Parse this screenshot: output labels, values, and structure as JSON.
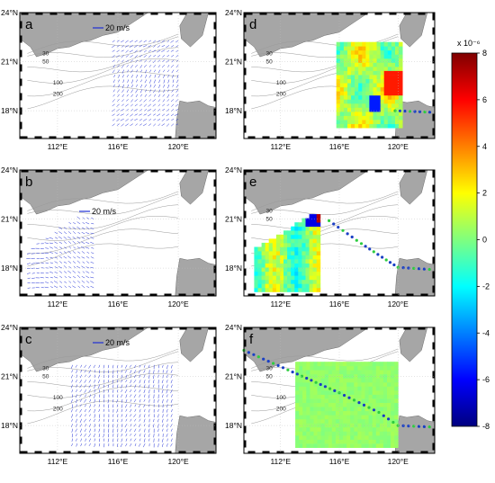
{
  "panels": [
    {
      "id": "a",
      "letter": "a",
      "ref_label": "20 m/s",
      "contours": [
        "30",
        "50",
        "100",
        "200"
      ],
      "field": "vectors",
      "region": "east",
      "track": "none"
    },
    {
      "id": "b",
      "letter": "b",
      "ref_label": "20 m/s",
      "contours": [],
      "field": "vectors",
      "region": "west",
      "track": "none"
    },
    {
      "id": "c",
      "letter": "c",
      "ref_label": "20 m/s",
      "contours": [
        "30",
        "50",
        "100",
        "200"
      ],
      "field": "vectors",
      "region": "full",
      "track": "none"
    },
    {
      "id": "d",
      "letter": "d",
      "ref_label": "",
      "contours": [
        "30",
        "50",
        "100",
        "200"
      ],
      "field": "color",
      "region": "east",
      "track": "short"
    },
    {
      "id": "e",
      "letter": "e",
      "ref_label": "",
      "contours": [
        "30",
        "50",
        "100",
        "200"
      ],
      "field": "color",
      "region": "west",
      "track": "medium"
    },
    {
      "id": "f",
      "letter": "f",
      "ref_label": "",
      "contours": [
        "30",
        "50",
        "100",
        "200"
      ],
      "field": "color-uniform",
      "region": "full",
      "track": "long"
    }
  ],
  "axes": {
    "lat_labels": [
      "24°N",
      "21°N",
      "18°N"
    ],
    "lon_labels": [
      "112°E",
      "116°E",
      "120°E"
    ]
  },
  "colorbar": {
    "scale_label": "x 10⁻⁶",
    "ticks": [
      "8",
      "6",
      "4",
      "2",
      "0",
      "-2",
      "-4",
      "-6",
      "-8"
    ],
    "range": [
      -8,
      8
    ]
  },
  "colors": {
    "land": "#a6a6a6",
    "vectors": "#1f2fd6",
    "track": "#1a3fc4",
    "track_dot": "#2ecc40",
    "contour": "#9a9a9a"
  }
}
